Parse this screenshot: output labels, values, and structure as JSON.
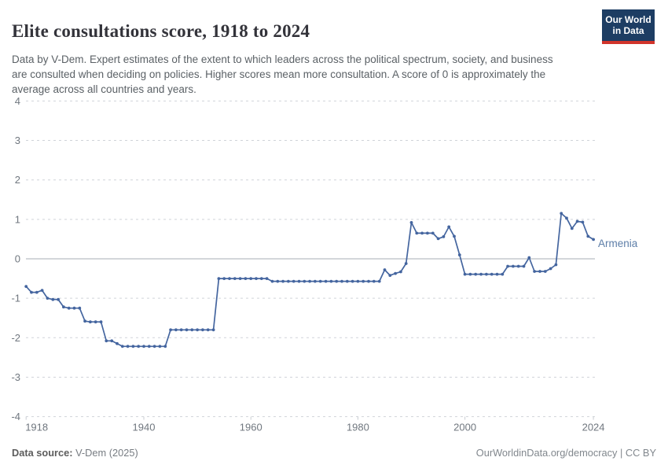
{
  "header": {
    "title": "Elite consultations score, 1918 to 2024",
    "subtitle": "Data by V-Dem. Expert estimates of the extent to which leaders across the political spectrum, society, and business are consulted when deciding on policies. Higher scores mean more consultation. A score of 0 is approximately the average across all countries and years."
  },
  "logo": {
    "line1": "Our World",
    "line2": "in Data",
    "bg_color": "#1d3d63",
    "accent_color": "#d1342b"
  },
  "chart_data": {
    "type": "line",
    "title": "Elite consultations score, 1918 to 2024",
    "entity": "Armenia",
    "x_axis": {
      "start": 1918,
      "end": 2024,
      "ticks": [
        1918,
        1940,
        1960,
        1980,
        2000,
        2024
      ]
    },
    "y_axis": {
      "min": -4,
      "max": 4,
      "ticks": [
        4,
        3,
        2,
        1,
        0,
        -1,
        -2,
        -3,
        -4
      ]
    },
    "grid": {
      "horizontal": "dashed",
      "zero_line": "solid",
      "legend": "entity label at line end"
    },
    "years": [
      1918,
      1919,
      1920,
      1921,
      1922,
      1923,
      1924,
      1925,
      1926,
      1927,
      1928,
      1929,
      1930,
      1931,
      1932,
      1933,
      1934,
      1935,
      1936,
      1937,
      1938,
      1939,
      1940,
      1941,
      1942,
      1943,
      1944,
      1945,
      1946,
      1947,
      1948,
      1949,
      1950,
      1951,
      1952,
      1953,
      1954,
      1955,
      1956,
      1957,
      1958,
      1959,
      1960,
      1961,
      1962,
      1963,
      1964,
      1965,
      1966,
      1967,
      1968,
      1969,
      1970,
      1971,
      1972,
      1973,
      1974,
      1975,
      1976,
      1977,
      1978,
      1979,
      1980,
      1981,
      1982,
      1983,
      1984,
      1985,
      1986,
      1987,
      1988,
      1989,
      1990,
      1991,
      1992,
      1993,
      1994,
      1995,
      1996,
      1997,
      1998,
      1999,
      2000,
      2001,
      2002,
      2003,
      2004,
      2005,
      2006,
      2007,
      2008,
      2009,
      2010,
      2011,
      2012,
      2013,
      2014,
      2015,
      2016,
      2017,
      2018,
      2019,
      2020,
      2021,
      2022,
      2023,
      2024
    ],
    "series": [
      {
        "name": "Armenia",
        "color": "#44659f",
        "values": [
          -0.7,
          -0.85,
          -0.85,
          -0.8,
          -1.0,
          -1.03,
          -1.03,
          -1.22,
          -1.25,
          -1.25,
          -1.25,
          -1.58,
          -1.6,
          -1.6,
          -1.6,
          -2.08,
          -2.08,
          -2.15,
          -2.22,
          -2.22,
          -2.22,
          -2.22,
          -2.22,
          -2.22,
          -2.22,
          -2.22,
          -2.22,
          -1.8,
          -1.8,
          -1.8,
          -1.8,
          -1.8,
          -1.8,
          -1.8,
          -1.8,
          -1.8,
          -0.5,
          -0.5,
          -0.5,
          -0.5,
          -0.5,
          -0.5,
          -0.5,
          -0.5,
          -0.5,
          -0.5,
          -0.57,
          -0.57,
          -0.57,
          -0.57,
          -0.57,
          -0.57,
          -0.57,
          -0.57,
          -0.57,
          -0.57,
          -0.57,
          -0.57,
          -0.57,
          -0.57,
          -0.57,
          -0.57,
          -0.57,
          -0.57,
          -0.57,
          -0.57,
          -0.57,
          -0.28,
          -0.42,
          -0.37,
          -0.33,
          -0.12,
          0.92,
          0.65,
          0.65,
          0.65,
          0.65,
          0.51,
          0.56,
          0.81,
          0.57,
          0.1,
          -0.39,
          -0.39,
          -0.39,
          -0.39,
          -0.39,
          -0.39,
          -0.39,
          -0.39,
          -0.19,
          -0.19,
          -0.19,
          -0.19,
          0.03,
          -0.32,
          -0.32,
          -0.32,
          -0.25,
          -0.15,
          1.15,
          1.03,
          0.77,
          0.95,
          0.93,
          0.57,
          0.49
        ]
      }
    ],
    "colors": {
      "line": "#44659f",
      "entity_label": "#5d7ea8",
      "gridline": "#d0d4d9",
      "zero_line": "#a7adb4",
      "tick_mark": "#c9cdd2",
      "tick_label": "#70777f"
    }
  },
  "footer": {
    "datasource_label": "Data source:",
    "datasource_value": " V-Dem (2025)",
    "right_text": "OurWorldinData.org/democracy | CC BY"
  }
}
